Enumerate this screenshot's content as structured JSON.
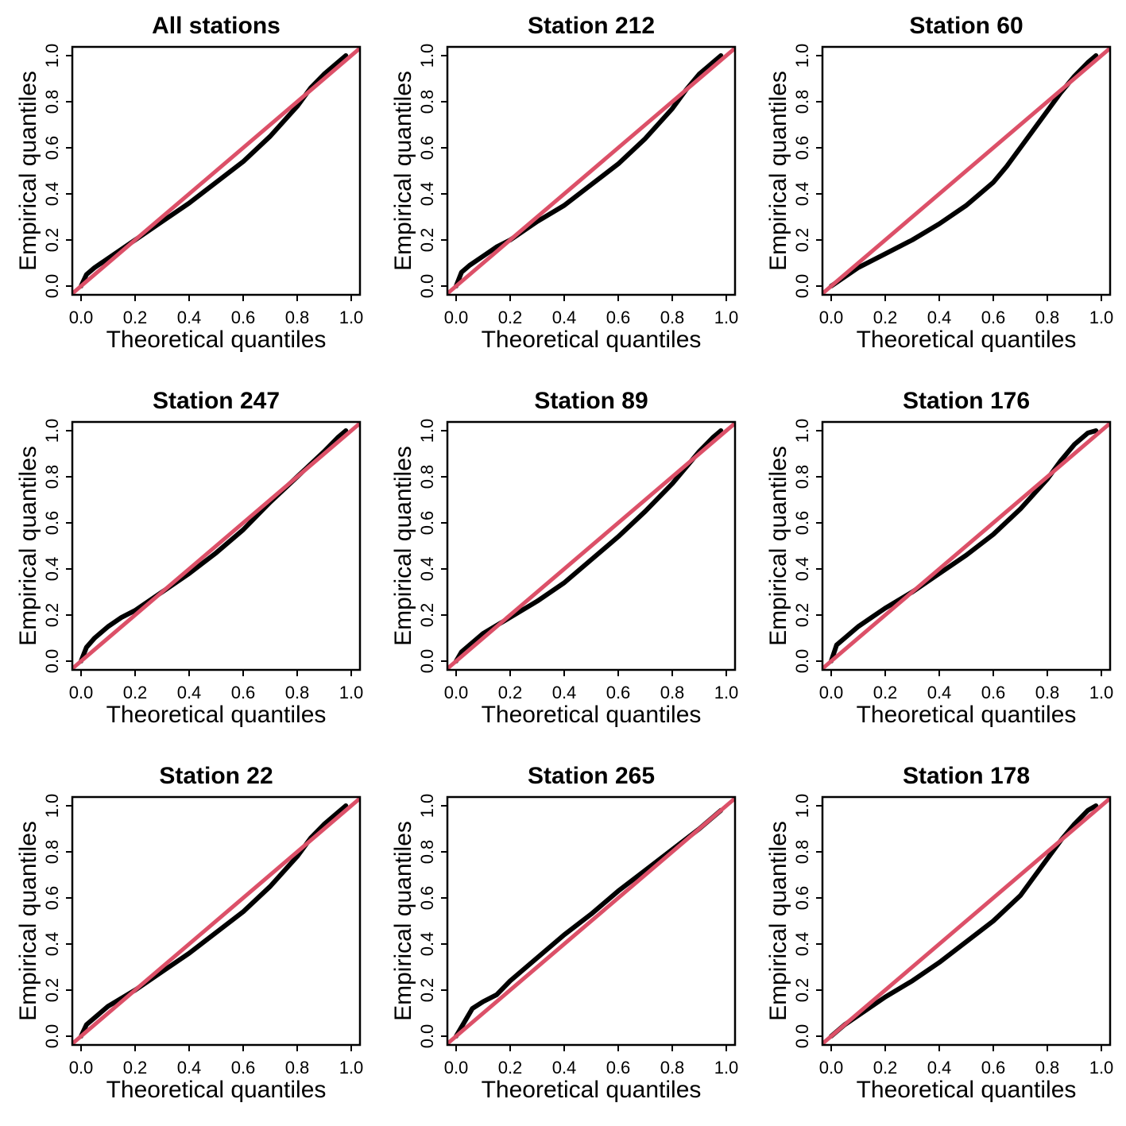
{
  "colors": {
    "empirical": "#000000",
    "reference": "#dc5068"
  },
  "chart_data": [
    {
      "type": "line",
      "title": "All stations",
      "xlabel": "Theoretical quantiles",
      "ylabel": "Empirical quantiles",
      "xlim": [
        0,
        1
      ],
      "ylim": [
        0,
        1
      ],
      "xticks": [
        "0.0",
        "0.2",
        "0.4",
        "0.6",
        "0.8",
        "1.0"
      ],
      "yticks": [
        "0.0",
        "0.2",
        "0.4",
        "0.6",
        "0.8",
        "1.0"
      ],
      "series": [
        {
          "kind": "empirical",
          "x": [
            0,
            0.02,
            0.05,
            0.1,
            0.15,
            0.2,
            0.3,
            0.4,
            0.5,
            0.6,
            0.7,
            0.8,
            0.85,
            0.9,
            0.95,
            0.98
          ],
          "y": [
            0,
            0.05,
            0.08,
            0.12,
            0.16,
            0.2,
            0.28,
            0.36,
            0.45,
            0.54,
            0.65,
            0.78,
            0.86,
            0.92,
            0.97,
            1.0
          ]
        },
        {
          "kind": "reference",
          "x": [
            0,
            1
          ],
          "y": [
            0,
            1
          ]
        }
      ]
    },
    {
      "type": "line",
      "title": "Station 212",
      "xlabel": "Theoretical quantiles",
      "ylabel": "Empirical quantiles",
      "xlim": [
        0,
        1
      ],
      "ylim": [
        0,
        1
      ],
      "xticks": [
        "0.0",
        "0.2",
        "0.4",
        "0.6",
        "0.8",
        "1.0"
      ],
      "yticks": [
        "0.0",
        "0.2",
        "0.4",
        "0.6",
        "0.8",
        "1.0"
      ],
      "series": [
        {
          "kind": "empirical",
          "x": [
            0,
            0.02,
            0.05,
            0.1,
            0.15,
            0.2,
            0.3,
            0.4,
            0.5,
            0.6,
            0.7,
            0.8,
            0.85,
            0.9,
            0.95,
            0.98
          ],
          "y": [
            0,
            0.06,
            0.09,
            0.13,
            0.17,
            0.2,
            0.28,
            0.35,
            0.44,
            0.53,
            0.64,
            0.77,
            0.85,
            0.92,
            0.97,
            1.0
          ]
        },
        {
          "kind": "reference",
          "x": [
            0,
            1
          ],
          "y": [
            0,
            1
          ]
        }
      ]
    },
    {
      "type": "line",
      "title": "Station 60",
      "xlabel": "Theoretical quantiles",
      "ylabel": "Empirical quantiles",
      "xlim": [
        0,
        1
      ],
      "ylim": [
        0,
        1
      ],
      "xticks": [
        "0.0",
        "0.2",
        "0.4",
        "0.6",
        "0.8",
        "1.0"
      ],
      "yticks": [
        "0.0",
        "0.2",
        "0.4",
        "0.6",
        "0.8",
        "1.0"
      ],
      "series": [
        {
          "kind": "empirical",
          "x": [
            0,
            0.05,
            0.1,
            0.2,
            0.3,
            0.4,
            0.5,
            0.6,
            0.65,
            0.7,
            0.75,
            0.8,
            0.85,
            0.9,
            0.95,
            0.98
          ],
          "y": [
            0,
            0.04,
            0.08,
            0.14,
            0.2,
            0.27,
            0.35,
            0.45,
            0.52,
            0.6,
            0.68,
            0.76,
            0.84,
            0.91,
            0.97,
            1.0
          ]
        },
        {
          "kind": "reference",
          "x": [
            0,
            1
          ],
          "y": [
            0,
            1
          ]
        }
      ]
    },
    {
      "type": "line",
      "title": "Station 247",
      "xlabel": "Theoretical quantiles",
      "ylabel": "Empirical quantiles",
      "xlim": [
        0,
        1
      ],
      "ylim": [
        0,
        1
      ],
      "xticks": [
        "0.0",
        "0.2",
        "0.4",
        "0.6",
        "0.8",
        "1.0"
      ],
      "yticks": [
        "0.0",
        "0.2",
        "0.4",
        "0.6",
        "0.8",
        "1.0"
      ],
      "series": [
        {
          "kind": "empirical",
          "x": [
            0,
            0.02,
            0.05,
            0.1,
            0.15,
            0.2,
            0.3,
            0.4,
            0.5,
            0.6,
            0.7,
            0.8,
            0.9,
            0.95,
            0.98
          ],
          "y": [
            0,
            0.06,
            0.1,
            0.15,
            0.19,
            0.22,
            0.3,
            0.38,
            0.47,
            0.57,
            0.69,
            0.8,
            0.91,
            0.97,
            1.0
          ]
        },
        {
          "kind": "reference",
          "x": [
            0,
            1
          ],
          "y": [
            0,
            1
          ]
        }
      ]
    },
    {
      "type": "line",
      "title": "Station 89",
      "xlabel": "Theoretical quantiles",
      "ylabel": "Empirical quantiles",
      "xlim": [
        0,
        1
      ],
      "ylim": [
        0,
        1
      ],
      "xticks": [
        "0.0",
        "0.2",
        "0.4",
        "0.6",
        "0.8",
        "1.0"
      ],
      "yticks": [
        "0.0",
        "0.2",
        "0.4",
        "0.6",
        "0.8",
        "1.0"
      ],
      "series": [
        {
          "kind": "empirical",
          "x": [
            0,
            0.02,
            0.05,
            0.1,
            0.2,
            0.3,
            0.4,
            0.5,
            0.6,
            0.7,
            0.8,
            0.85,
            0.9,
            0.95,
            0.98
          ],
          "y": [
            0,
            0.04,
            0.07,
            0.12,
            0.19,
            0.26,
            0.34,
            0.44,
            0.54,
            0.65,
            0.77,
            0.84,
            0.91,
            0.97,
            1.0
          ]
        },
        {
          "kind": "reference",
          "x": [
            0,
            1
          ],
          "y": [
            0,
            1
          ]
        }
      ]
    },
    {
      "type": "line",
      "title": "Station 176",
      "xlabel": "Theoretical quantiles",
      "ylabel": "Empirical quantiles",
      "xlim": [
        0,
        1
      ],
      "ylim": [
        0,
        1
      ],
      "xticks": [
        "0.0",
        "0.2",
        "0.4",
        "0.6",
        "0.8",
        "1.0"
      ],
      "yticks": [
        "0.0",
        "0.2",
        "0.4",
        "0.6",
        "0.8",
        "1.0"
      ],
      "series": [
        {
          "kind": "empirical",
          "x": [
            0,
            0.02,
            0.05,
            0.1,
            0.15,
            0.2,
            0.3,
            0.4,
            0.5,
            0.6,
            0.7,
            0.8,
            0.85,
            0.9,
            0.95,
            0.98
          ],
          "y": [
            0,
            0.07,
            0.1,
            0.15,
            0.19,
            0.23,
            0.3,
            0.38,
            0.46,
            0.55,
            0.66,
            0.79,
            0.87,
            0.94,
            0.99,
            1.0
          ]
        },
        {
          "kind": "reference",
          "x": [
            0,
            1
          ],
          "y": [
            0,
            1
          ]
        }
      ]
    },
    {
      "type": "line",
      "title": "Station 22",
      "xlabel": "Theoretical quantiles",
      "ylabel": "Empirical quantiles",
      "xlim": [
        0,
        1
      ],
      "ylim": [
        0,
        1
      ],
      "xticks": [
        "0.0",
        "0.2",
        "0.4",
        "0.6",
        "0.8",
        "1.0"
      ],
      "yticks": [
        "0.0",
        "0.2",
        "0.4",
        "0.6",
        "0.8",
        "1.0"
      ],
      "series": [
        {
          "kind": "empirical",
          "x": [
            0,
            0.02,
            0.05,
            0.1,
            0.2,
            0.3,
            0.4,
            0.5,
            0.6,
            0.7,
            0.8,
            0.85,
            0.9,
            0.95,
            0.98
          ],
          "y": [
            0,
            0.05,
            0.08,
            0.13,
            0.2,
            0.28,
            0.36,
            0.45,
            0.54,
            0.65,
            0.78,
            0.86,
            0.92,
            0.97,
            1.0
          ]
        },
        {
          "kind": "reference",
          "x": [
            0,
            1
          ],
          "y": [
            0,
            1
          ]
        }
      ]
    },
    {
      "type": "line",
      "title": "Station 265",
      "xlabel": "Theoretical quantiles",
      "ylabel": "Empirical quantiles",
      "xlim": [
        0,
        1
      ],
      "ylim": [
        0,
        1
      ],
      "xticks": [
        "0.0",
        "0.2",
        "0.4",
        "0.6",
        "0.8",
        "1.0"
      ],
      "yticks": [
        "0.0",
        "0.2",
        "0.4",
        "0.6",
        "0.8",
        "1.0"
      ],
      "series": [
        {
          "kind": "empirical",
          "x": [
            0,
            0.02,
            0.04,
            0.06,
            0.1,
            0.15,
            0.2,
            0.3,
            0.4,
            0.5,
            0.6,
            0.7,
            0.8,
            0.9,
            0.95,
            0.98
          ],
          "y": [
            0,
            0.04,
            0.08,
            0.12,
            0.15,
            0.18,
            0.24,
            0.34,
            0.44,
            0.53,
            0.63,
            0.72,
            0.81,
            0.9,
            0.95,
            0.98
          ]
        },
        {
          "kind": "reference",
          "x": [
            0,
            1
          ],
          "y": [
            0,
            1
          ]
        }
      ]
    },
    {
      "type": "line",
      "title": "Station 178",
      "xlabel": "Theoretical quantiles",
      "ylabel": "Empirical quantiles",
      "xlim": [
        0,
        1
      ],
      "ylim": [
        0,
        1
      ],
      "xticks": [
        "0.0",
        "0.2",
        "0.4",
        "0.6",
        "0.8",
        "1.0"
      ],
      "yticks": [
        "0.0",
        "0.2",
        "0.4",
        "0.6",
        "0.8",
        "1.0"
      ],
      "series": [
        {
          "kind": "empirical",
          "x": [
            0,
            0.05,
            0.1,
            0.2,
            0.3,
            0.4,
            0.5,
            0.6,
            0.7,
            0.75,
            0.8,
            0.85,
            0.9,
            0.95,
            0.98
          ],
          "y": [
            0,
            0.05,
            0.09,
            0.17,
            0.24,
            0.32,
            0.41,
            0.5,
            0.61,
            0.69,
            0.77,
            0.85,
            0.92,
            0.98,
            1.0
          ]
        },
        {
          "kind": "reference",
          "x": [
            0,
            1
          ],
          "y": [
            0,
            1
          ]
        }
      ]
    }
  ]
}
